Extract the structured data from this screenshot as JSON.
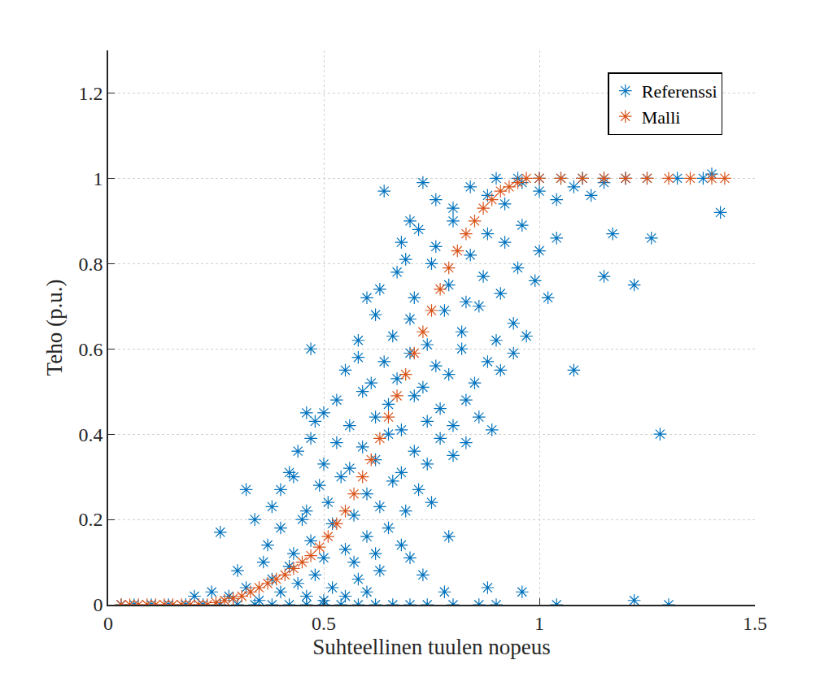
{
  "chart_data": {
    "type": "scatter",
    "x_label": "Suhteellinen tuulen nopeus",
    "y_label": "Teho (p.u.)",
    "xlim": [
      0,
      1.5
    ],
    "xticks": [
      0,
      0.5,
      1,
      1.5
    ],
    "ylim": [
      0,
      1.3
    ],
    "yticks": [
      0,
      0.2,
      0.4,
      0.6,
      0.8,
      1,
      1.2
    ],
    "grid": true,
    "legend": "top right",
    "series": [
      {
        "name": "Referenssi",
        "color": "#0072BD",
        "marker": "asterisk",
        "x": [
          0.03,
          0.06,
          0.1,
          0.14,
          0.18,
          0.22,
          0.26,
          0.3,
          0.34,
          0.38,
          0.42,
          0.46,
          0.5,
          0.54,
          0.58,
          0.62,
          0.66,
          0.7,
          0.74,
          0.8,
          0.86,
          0.9,
          0.28,
          0.32,
          0.35,
          0.38,
          0.4,
          0.42,
          0.44,
          0.46,
          0.48,
          0.5,
          0.52,
          0.55,
          0.58,
          0.3,
          0.36,
          0.6,
          0.63,
          0.24,
          0.2,
          0.37,
          0.4,
          0.43,
          0.45,
          0.47,
          0.5,
          0.52,
          0.55,
          0.57,
          0.6,
          0.62,
          0.65,
          0.68,
          0.34,
          0.7,
          0.4,
          0.43,
          0.46,
          0.49,
          0.51,
          0.54,
          0.57,
          0.6,
          0.63,
          0.66,
          0.69,
          0.72,
          0.75,
          0.38,
          0.44,
          0.47,
          0.5,
          0.53,
          0.56,
          0.59,
          0.62,
          0.65,
          0.68,
          0.71,
          0.74,
          0.77,
          0.8,
          0.42,
          0.83,
          0.5,
          0.53,
          0.56,
          0.59,
          0.62,
          0.65,
          0.68,
          0.71,
          0.74,
          0.77,
          0.8,
          0.83,
          0.86,
          0.89,
          0.48,
          0.55,
          0.58,
          0.61,
          0.64,
          0.67,
          0.7,
          0.73,
          0.76,
          0.79,
          0.82,
          0.85,
          0.88,
          0.91,
          0.94,
          0.58,
          0.62,
          0.66,
          0.7,
          0.74,
          0.78,
          0.82,
          0.86,
          0.9,
          0.94,
          0.97,
          0.6,
          0.63,
          0.67,
          0.71,
          0.75,
          0.79,
          0.83,
          0.87,
          0.91,
          0.95,
          0.99,
          1.02,
          0.69,
          0.68,
          0.72,
          0.76,
          0.8,
          0.84,
          0.88,
          0.92,
          0.96,
          1.0,
          1.04,
          0.7,
          0.76,
          0.8,
          0.84,
          0.88,
          0.92,
          0.96,
          1.0,
          1.04,
          1.08,
          1.12,
          1.15,
          0.73,
          0.9,
          0.95,
          1.0,
          1.05,
          1.1,
          1.15,
          1.2,
          1.25,
          1.32,
          1.38,
          1.4,
          0.47,
          0.64,
          1.42,
          1.28,
          1.22,
          1.26,
          0.88,
          0.96,
          1.04,
          1.22,
          1.3,
          0.73,
          0.79,
          0.26,
          0.32,
          0.46,
          0.78,
          1.08,
          1.17,
          1.15
        ],
        "values": [
          0,
          0,
          0,
          0,
          0,
          0,
          0,
          0,
          0,
          0,
          0,
          0,
          0,
          0,
          0,
          0,
          0,
          0,
          0,
          0,
          0,
          0,
          0.02,
          0.04,
          0.01,
          0.06,
          0.03,
          0.09,
          0.05,
          0.02,
          0.07,
          0.01,
          0.04,
          0.02,
          0.06,
          0.08,
          0.1,
          0.03,
          0.08,
          0.03,
          0.02,
          0.14,
          0.18,
          0.12,
          0.2,
          0.15,
          0.11,
          0.19,
          0.13,
          0.1,
          0.16,
          0.12,
          0.18,
          0.14,
          0.2,
          0.11,
          0.27,
          0.3,
          0.22,
          0.28,
          0.24,
          0.3,
          0.21,
          0.26,
          0.23,
          0.29,
          0.22,
          0.27,
          0.24,
          0.23,
          0.36,
          0.39,
          0.33,
          0.38,
          0.32,
          0.37,
          0.34,
          0.4,
          0.31,
          0.36,
          0.33,
          0.39,
          0.35,
          0.31,
          0.38,
          0.45,
          0.48,
          0.42,
          0.5,
          0.44,
          0.47,
          0.41,
          0.49,
          0.43,
          0.46,
          0.42,
          0.48,
          0.44,
          0.41,
          0.43,
          0.55,
          0.58,
          0.52,
          0.57,
          0.53,
          0.59,
          0.51,
          0.56,
          0.54,
          0.6,
          0.52,
          0.57,
          0.55,
          0.59,
          0.62,
          0.68,
          0.63,
          0.67,
          0.61,
          0.69,
          0.64,
          0.7,
          0.62,
          0.66,
          0.63,
          0.72,
          0.74,
          0.78,
          0.72,
          0.8,
          0.75,
          0.71,
          0.77,
          0.73,
          0.79,
          0.76,
          0.72,
          0.81,
          0.85,
          0.88,
          0.84,
          0.9,
          0.82,
          0.87,
          0.85,
          0.89,
          0.83,
          0.86,
          0.9,
          0.95,
          0.93,
          0.98,
          0.96,
          0.94,
          0.99,
          0.97,
          0.95,
          0.98,
          0.96,
          0.99,
          0.99,
          1,
          1,
          1,
          1,
          1,
          1,
          1,
          1,
          1,
          1,
          1.01,
          0.6,
          0.97,
          0.92,
          0.4,
          0.75,
          0.86,
          0.04,
          0.03,
          0,
          0.01,
          0,
          0.07,
          0.16,
          0.17,
          0.27,
          0.45,
          0.03,
          0.55,
          0.87,
          0.77
        ]
      },
      {
        "name": "Malli",
        "color": "#D95319",
        "marker": "asterisk",
        "x": [
          0.03,
          0.05,
          0.07,
          0.09,
          0.11,
          0.13,
          0.15,
          0.17,
          0.19,
          0.21,
          0.23,
          0.25,
          0.27,
          0.29,
          0.31,
          0.33,
          0.35,
          0.37,
          0.39,
          0.41,
          0.43,
          0.45,
          0.47,
          0.49,
          0.51,
          0.53,
          0.55,
          0.57,
          0.59,
          0.61,
          0.63,
          0.65,
          0.67,
          0.69,
          0.71,
          0.73,
          0.75,
          0.77,
          0.79,
          0.81,
          0.83,
          0.85,
          0.87,
          0.89,
          0.91,
          0.93,
          0.95,
          0.97,
          1.0,
          1.05,
          1.1,
          1.15,
          1.2,
          1.25,
          1.3,
          1.35,
          1.4,
          1.43
        ],
        "values": [
          0,
          0,
          0,
          0,
          0,
          0,
          0,
          0,
          0,
          0,
          0,
          0.005,
          0.01,
          0.015,
          0.02,
          0.03,
          0.04,
          0.05,
          0.06,
          0.07,
          0.085,
          0.1,
          0.115,
          0.135,
          0.16,
          0.19,
          0.22,
          0.26,
          0.3,
          0.34,
          0.39,
          0.44,
          0.49,
          0.54,
          0.59,
          0.64,
          0.69,
          0.74,
          0.79,
          0.83,
          0.87,
          0.9,
          0.93,
          0.95,
          0.97,
          0.98,
          0.99,
          1,
          1,
          1,
          1,
          1,
          1,
          1,
          1,
          1,
          1,
          1
        ]
      }
    ]
  }
}
